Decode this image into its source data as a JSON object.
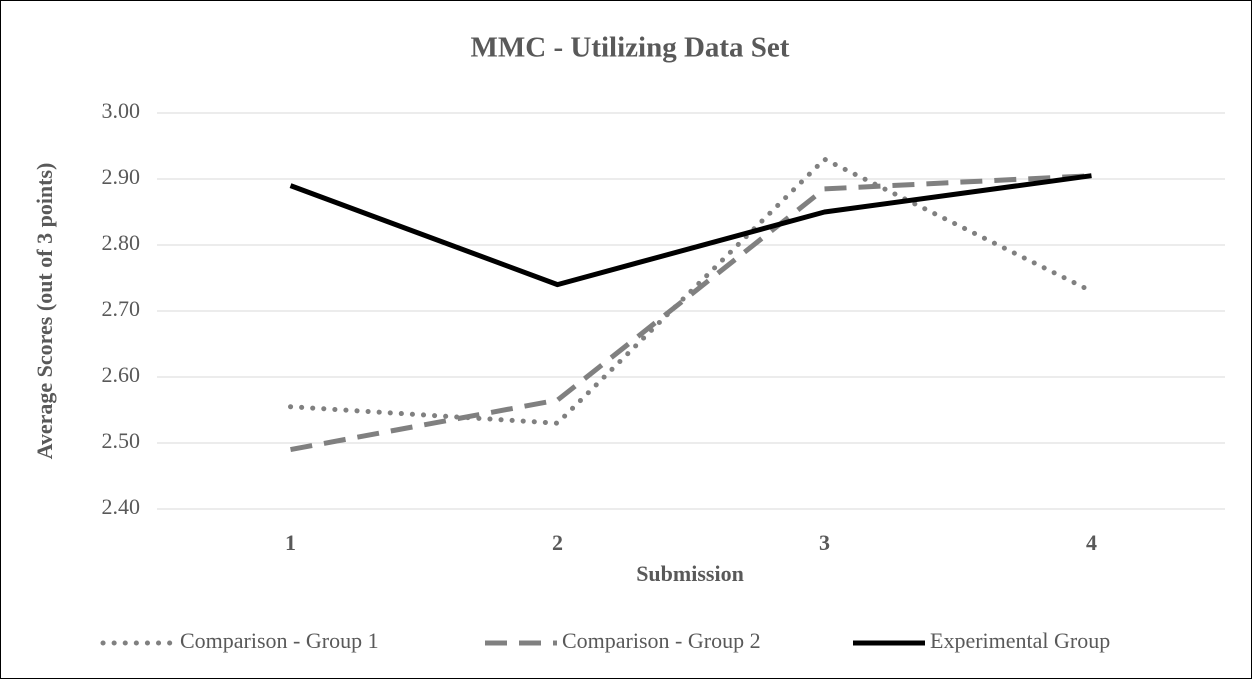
{
  "chart_data": {
    "type": "line",
    "title": "MMC - Utilizing Data Set",
    "x_label": "Submission",
    "y_label": "Average Scores (out of 3 points)",
    "categories": [
      "1",
      "2",
      "3",
      "4"
    ],
    "series": [
      {
        "name": "Comparison - Group 1",
        "color": "#808080",
        "style": "dotted",
        "values": [
          2.555,
          2.53,
          2.93,
          2.73
        ]
      },
      {
        "name": "Comparison - Group 2",
        "color": "#808080",
        "style": "dashed",
        "values": [
          2.49,
          2.565,
          2.885,
          2.905
        ]
      },
      {
        "name": "Experimental Group",
        "color": "#000000",
        "style": "solid",
        "values": [
          2.89,
          2.74,
          2.85,
          2.905
        ]
      }
    ],
    "ylim": [
      2.4,
      3.0
    ],
    "yticks": [
      {
        "value": 2.4,
        "label": "2.40"
      },
      {
        "value": 2.5,
        "label": "2.50"
      },
      {
        "value": 2.6,
        "label": "2.60"
      },
      {
        "value": 2.7,
        "label": "2.70"
      },
      {
        "value": 2.8,
        "label": "2.80"
      },
      {
        "value": 2.9,
        "label": "2.90"
      },
      {
        "value": 3.0,
        "label": "3.00"
      }
    ],
    "grid": true,
    "legend": "bottom"
  }
}
